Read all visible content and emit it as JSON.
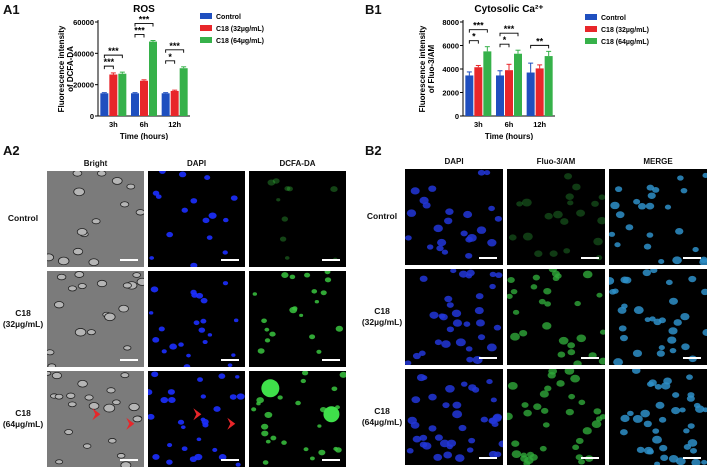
{
  "panel_labels": {
    "a1": "A1",
    "b1": "B1",
    "a2": "A2",
    "b2": "B2"
  },
  "colors": {
    "control": "#1f4fbf",
    "c18_32": "#e8262a",
    "c18_64": "#36b14a"
  },
  "chart_data": [
    {
      "type": "bar",
      "title": "ROS",
      "ylabel": "Fluorescence intensity of DCFA-DA",
      "xlabel": "Time (hours)",
      "categories": [
        "3h",
        "6h",
        "12h"
      ],
      "ylim": [
        0,
        60000
      ],
      "yticks": [
        "0",
        "20000",
        "40000",
        "60000"
      ],
      "series": [
        {
          "name": "Control",
          "values": [
            14500,
            14500,
            14500
          ],
          "errors": [
            400,
            400,
            400
          ]
        },
        {
          "name": "C18 (32µg/mL)",
          "values": [
            26500,
            22500,
            16000
          ],
          "errors": [
            1000,
            600,
            500
          ]
        },
        {
          "name": "C18 (64µg/mL)",
          "values": [
            27000,
            47500,
            30500
          ],
          "errors": [
            1000,
            700,
            900
          ]
        }
      ],
      "significance": [
        {
          "group": 0,
          "from": 0,
          "to": 1,
          "label": "***"
        },
        {
          "group": 0,
          "from": 0,
          "to": 2,
          "label": "***"
        },
        {
          "group": 1,
          "from": 0,
          "to": 1,
          "label": "***"
        },
        {
          "group": 1,
          "from": 0,
          "to": 2,
          "label": "***"
        },
        {
          "group": 2,
          "from": 0,
          "to": 1,
          "label": "*"
        },
        {
          "group": 2,
          "from": 0,
          "to": 2,
          "label": "***"
        }
      ]
    },
    {
      "type": "bar",
      "title": "Cytosolic Ca²⁺",
      "ylabel": "Fluorescence intensity of Fluo-3/AM",
      "xlabel": "Time (hours)",
      "categories": [
        "3h",
        "6h",
        "12h"
      ],
      "ylim": [
        0,
        8000
      ],
      "yticks": [
        "0",
        "2000",
        "4000",
        "6000",
        "8000"
      ],
      "series": [
        {
          "name": "Control",
          "values": [
            3450,
            3450,
            3700
          ],
          "errors": [
            300,
            400,
            800
          ]
        },
        {
          "name": "C18 (32µg/mL)",
          "values": [
            4150,
            3900,
            4050
          ],
          "errors": [
            150,
            500,
            300
          ]
        },
        {
          "name": "C18 (64µg/mL)",
          "values": [
            5500,
            5300,
            5100
          ],
          "errors": [
            400,
            300,
            400
          ]
        }
      ],
      "significance": [
        {
          "group": 0,
          "from": 0,
          "to": 1,
          "label": "*"
        },
        {
          "group": 0,
          "from": 0,
          "to": 2,
          "label": "***"
        },
        {
          "group": 1,
          "from": 0,
          "to": 1,
          "label": "*"
        },
        {
          "group": 1,
          "from": 0,
          "to": 2,
          "label": "***"
        },
        {
          "group": 2,
          "from": 0,
          "to": 2,
          "label": "**"
        }
      ]
    }
  ],
  "a2": {
    "columns": [
      "Bright",
      "DAPI",
      "DCFA-DA"
    ],
    "rows": [
      {
        "line1": "Control",
        "line2": ""
      },
      {
        "line1": "C18",
        "line2": "(32µg/mL)"
      },
      {
        "line1": "C18",
        "line2": "(64µg/mL)"
      }
    ]
  },
  "b2": {
    "columns": [
      "DAPI",
      "Fluo-3/AM",
      "MERGE"
    ],
    "rows": [
      {
        "line1": "Control",
        "line2": ""
      },
      {
        "line1": "C18",
        "line2": "(32µg/mL)"
      },
      {
        "line1": "C18",
        "line2": "(64µg/mL)"
      }
    ]
  }
}
